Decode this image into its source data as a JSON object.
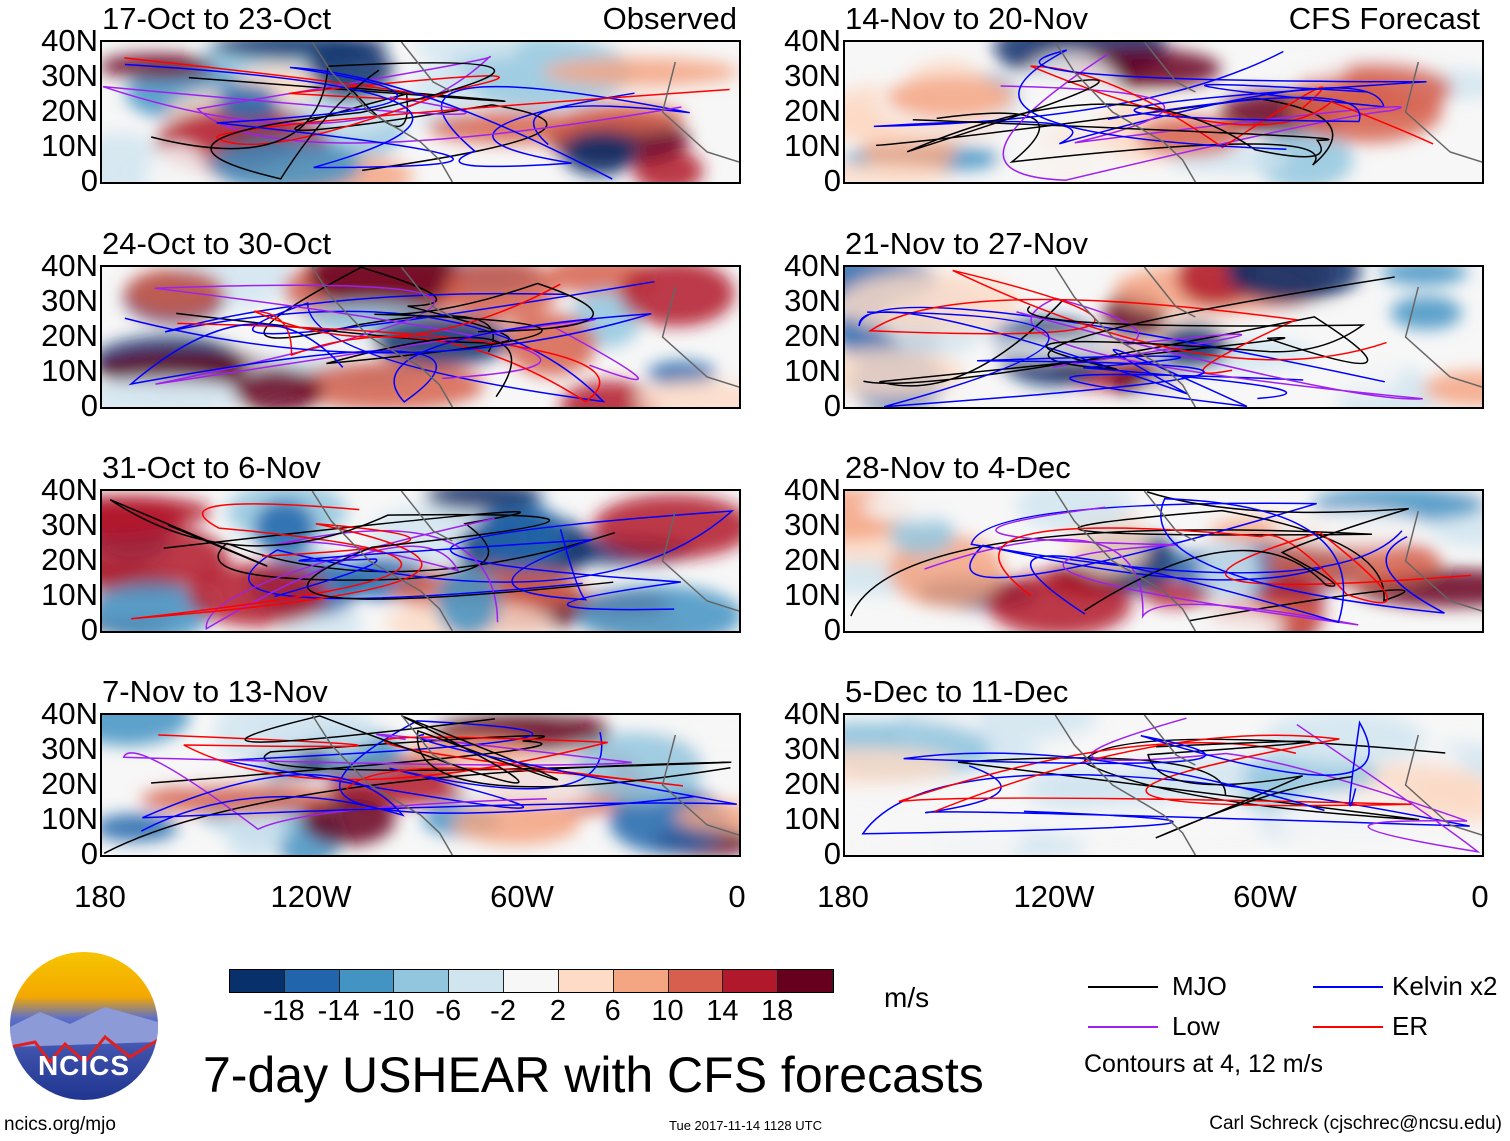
{
  "figure": {
    "title": "7-day USHEAR with CFS forecasts",
    "website": "ncics.org/mjo",
    "timestamp": "Tue 2017-11-14 1128 UTC",
    "author": "Carl Schreck (cjschrec@ncsu.edu)",
    "logo_text": "NCICS"
  },
  "columns": {
    "left": "Observed",
    "right": "CFS Forecast"
  },
  "panels_left": [
    "17-Oct to 23-Oct",
    "24-Oct to 30-Oct",
    "31-Oct to 6-Nov",
    "7-Nov to 13-Nov"
  ],
  "panels_right": [
    "14-Nov to 20-Nov",
    "21-Nov to 27-Nov",
    "28-Nov to 4-Dec",
    "5-Dec to 11-Dec"
  ],
  "y_ticks": [
    "40N",
    "30N",
    "20N",
    "10N",
    "0"
  ],
  "x_ticks": [
    "180",
    "120W",
    "60W",
    "0"
  ],
  "colorbar": {
    "units": "m/s",
    "labels": [
      "-18",
      "-14",
      "-10",
      "-6",
      "-2",
      "2",
      "6",
      "10",
      "14",
      "18"
    ],
    "colors": [
      "#08306b",
      "#2166ac",
      "#4393c3",
      "#92c5de",
      "#d1e5f0",
      "#f7f7f7",
      "#fddbc7",
      "#f4a582",
      "#d6604d",
      "#b2182b",
      "#67001f"
    ]
  },
  "legend": {
    "items": [
      {
        "label": "MJO",
        "color": "#000000"
      },
      {
        "label": "Kelvin x2",
        "color": "#0000ff"
      },
      {
        "label": "Low",
        "color": "#a020f0"
      },
      {
        "label": "ER",
        "color": "#ff0000"
      }
    ],
    "note": "Contours at 4, 12 m/s"
  }
}
